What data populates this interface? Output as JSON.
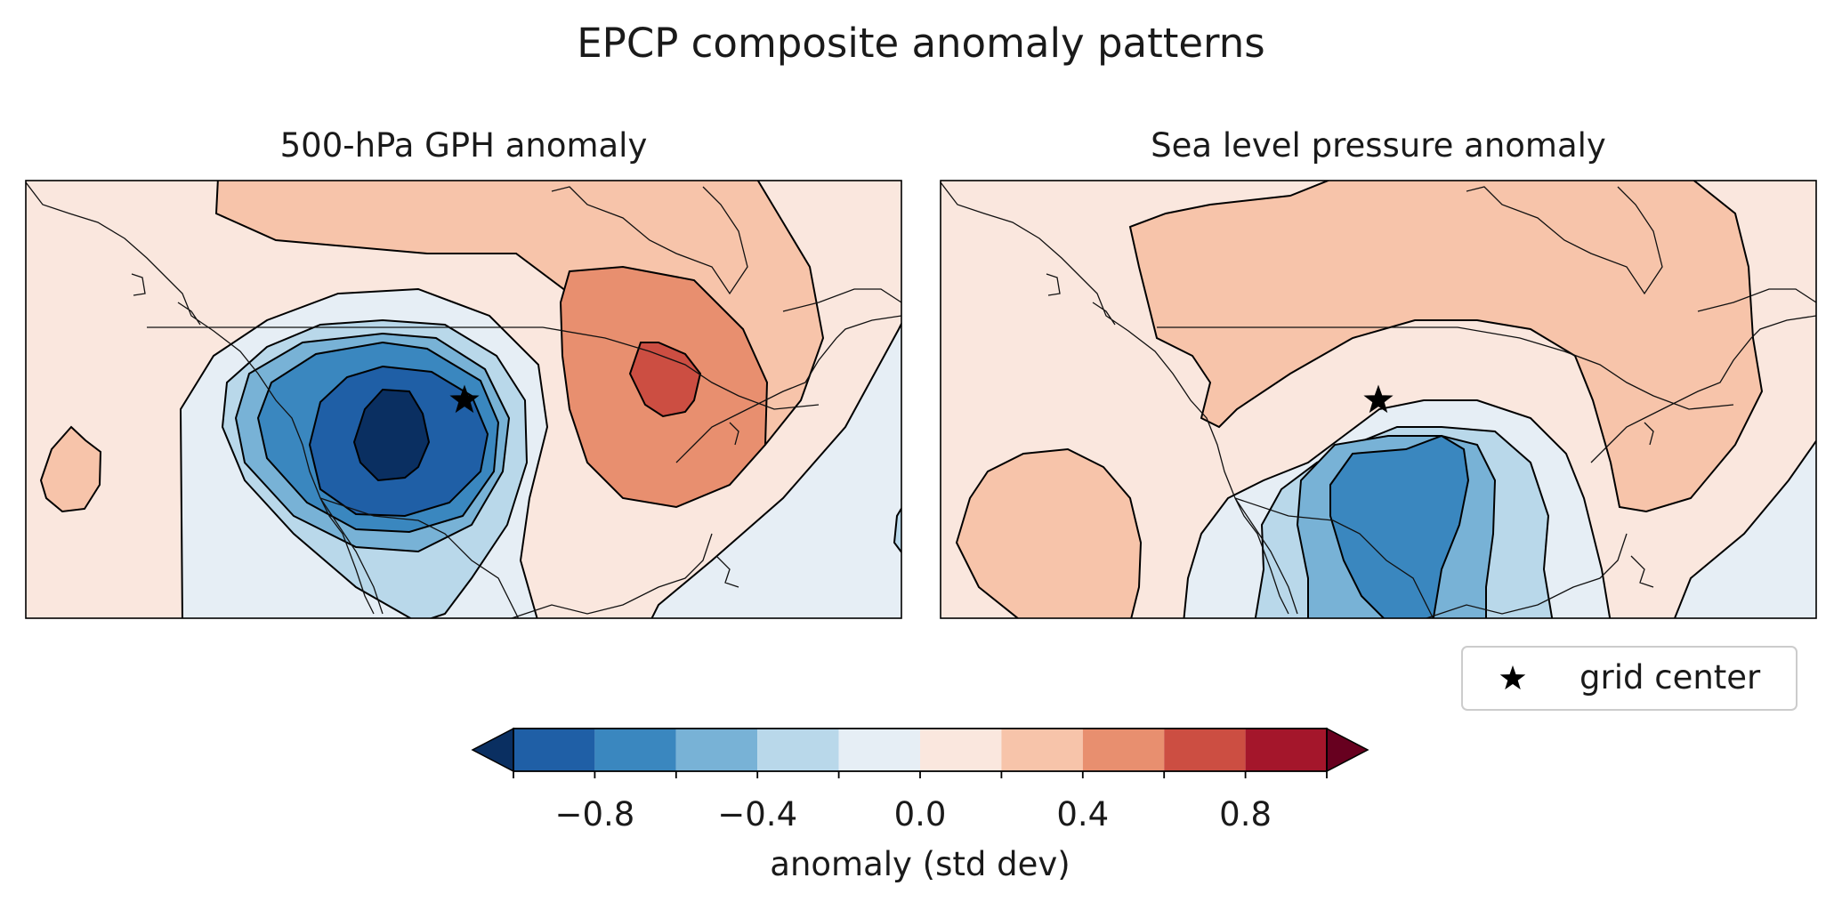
{
  "figure": {
    "title": "EPCP composite anomaly patterns"
  },
  "chart_data": [
    {
      "type": "heatmap",
      "subtype": "filled-contour-map",
      "title": "500-hPa GPH anomaly",
      "variable": "500-hPa geopotential height anomaly",
      "units": "std dev",
      "contour_features": [
        {
          "kind": "low",
          "location": "Northeast Pacific off the US West Coast",
          "min_level": -1.0,
          "levels_shown": [
            -1.0,
            -0.8,
            -0.6,
            -0.4,
            -0.2,
            0.0
          ]
        },
        {
          "kind": "high",
          "location": "Central / Northern Plains, US",
          "max_level": 0.8,
          "levels_shown": [
            0.2,
            0.4,
            0.6
          ]
        },
        {
          "kind": "small high",
          "location": "Central Pacific, west edge",
          "level": 0.2
        }
      ],
      "marker": {
        "label": "grid center",
        "symbol": "star"
      }
    },
    {
      "type": "heatmap",
      "subtype": "filled-contour-map",
      "title": "Sea level pressure anomaly",
      "variable": "Sea level pressure anomaly",
      "units": "std dev",
      "contour_features": [
        {
          "kind": "low",
          "location": "Southwestern US / northern Mexico",
          "min_level": -0.6,
          "levels_shown": [
            -0.6,
            -0.4,
            -0.2,
            0.0
          ]
        },
        {
          "kind": "high",
          "location": "Central and eastern North America",
          "level": 0.2
        },
        {
          "kind": "high",
          "location": "Eastern North Pacific",
          "level": 0.2
        }
      ],
      "marker": {
        "label": "grid center",
        "symbol": "star"
      }
    }
  ],
  "colorbar": {
    "label": "anomaly (std dev)",
    "colormap": "RdBu_r",
    "boundaries": [
      -1.0,
      -0.8,
      -0.6,
      -0.4,
      -0.2,
      0.0,
      0.2,
      0.4,
      0.6,
      0.8,
      1.0
    ],
    "extend": "both",
    "colors": [
      "#1f5fa6",
      "#3a87bf",
      "#78b2d6",
      "#b9d8ea",
      "#e6eef5",
      "#fae7de",
      "#f7c4aa",
      "#e88f6f",
      "#cc4e42",
      "#a4162b"
    ],
    "under_color": "#0a2f61",
    "over_color": "#67001f",
    "ticks": [
      -0.8,
      -0.4,
      0.0,
      0.4,
      0.8
    ],
    "tick_labels": [
      "−0.8",
      "−0.4",
      "0.0",
      "0.4",
      "0.8"
    ]
  },
  "legend": {
    "label": "grid center",
    "placement": "lower right, below right panel"
  }
}
